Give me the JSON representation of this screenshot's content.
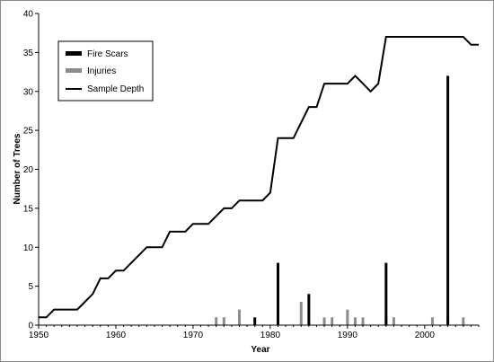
{
  "chart_data": {
    "type": "bar+line",
    "title": "",
    "xlabel": "Year",
    "ylabel": "Number of Trees",
    "xlim": [
      1950,
      2007
    ],
    "ylim": [
      0,
      40
    ],
    "x_ticks": [
      "1950",
      "1960",
      "1970",
      "1980",
      "1990",
      "2000"
    ],
    "y_ticks": [
      "0",
      "5",
      "10",
      "15",
      "20",
      "25",
      "30",
      "35",
      "40"
    ],
    "grid": false,
    "legend_position": "top-left",
    "series": [
      {
        "name": "Fire Scars",
        "kind": "bar",
        "color": "#000000",
        "x": [
          1978,
          1981,
          1985,
          1995,
          2003
        ],
        "values": [
          1,
          8,
          4,
          8,
          32
        ]
      },
      {
        "name": "Injuries",
        "kind": "bar",
        "color": "#8c8c8c",
        "x": [
          1973,
          1974,
          1976,
          1981,
          1984,
          1987,
          1988,
          1990,
          1991,
          1992,
          1995,
          1996,
          2001,
          2003,
          2005
        ],
        "values": [
          1,
          1,
          2,
          1,
          3,
          1,
          1,
          2,
          1,
          1,
          1,
          1,
          1,
          1,
          1
        ]
      },
      {
        "name": "Sample Depth",
        "kind": "line",
        "color": "#000000",
        "x": [
          1950,
          1951,
          1952,
          1953,
          1954,
          1955,
          1956,
          1957,
          1958,
          1959,
          1960,
          1961,
          1962,
          1963,
          1964,
          1965,
          1966,
          1967,
          1968,
          1969,
          1970,
          1971,
          1972,
          1973,
          1974,
          1975,
          1976,
          1977,
          1978,
          1979,
          1980,
          1981,
          1982,
          1983,
          1984,
          1985,
          1986,
          1987,
          1988,
          1989,
          1990,
          1991,
          1992,
          1993,
          1994,
          1995,
          1996,
          1997,
          1998,
          1999,
          2000,
          2001,
          2002,
          2003,
          2004,
          2005,
          2006,
          2007
        ],
        "values": [
          1,
          1,
          2,
          2,
          2,
          2,
          3,
          4,
          6,
          6,
          7,
          7,
          8,
          9,
          10,
          10,
          10,
          12,
          12,
          12,
          13,
          13,
          13,
          14,
          15,
          15,
          16,
          16,
          16,
          16,
          17,
          24,
          24,
          24,
          26,
          28,
          28,
          31,
          31,
          31,
          31,
          32,
          31,
          30,
          31,
          37,
          37,
          37,
          37,
          37,
          37,
          37,
          37,
          37,
          37,
          37,
          36,
          36
        ]
      }
    ]
  }
}
